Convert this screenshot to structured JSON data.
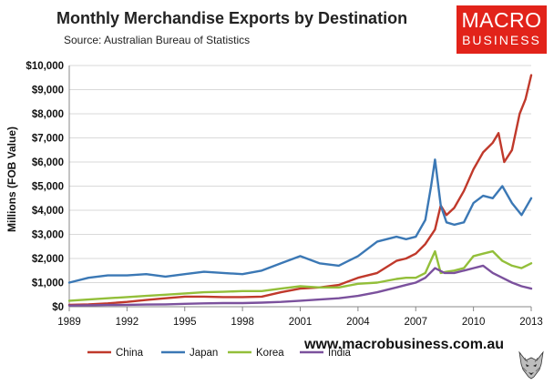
{
  "title": "Monthly Merchandise Exports by Destination",
  "subtitle": "Source:  Australian Bureau of Statistics",
  "logo": {
    "line1": "MACRO",
    "line2": "BUSINESS",
    "color": "#e2231a"
  },
  "website": "www.macrobusiness.com.au",
  "wolf_icon": "wolf-head-logo",
  "chart_data": {
    "type": "line",
    "ylabel": "Millions (FOB Value)",
    "ylim": [
      0,
      10000
    ],
    "xlim": [
      1989,
      2013
    ],
    "yticks": [
      0,
      1000,
      2000,
      3000,
      4000,
      5000,
      6000,
      7000,
      8000,
      9000,
      10000
    ],
    "ytick_labels": [
      "$0",
      "$1,000",
      "$2,000",
      "$3,000",
      "$4,000",
      "$5,000",
      "$6,000",
      "$7,000",
      "$8,000",
      "$9,000",
      "$10,000"
    ],
    "xticks": [
      1989,
      1992,
      1995,
      1998,
      2001,
      2004,
      2007,
      2010,
      2013
    ],
    "xtick_labels": [
      "1989",
      "1992",
      "1995",
      "1998",
      "2001",
      "2004",
      "2007",
      "2010",
      "2013"
    ],
    "grid": true,
    "legend_position": "bottom",
    "series": [
      {
        "name": "China",
        "color": "#c0392b",
        "x": [
          1989.0,
          1990.0,
          1991.0,
          1992.0,
          1993.0,
          1994.0,
          1995.0,
          1996.0,
          1997.0,
          1998.0,
          1999.0,
          2000.0,
          2001.0,
          2002.0,
          2003.0,
          2004.0,
          2005.0,
          2006.0,
          2006.5,
          2007.0,
          2007.5,
          2008.0,
          2008.3,
          2008.6,
          2009.0,
          2009.5,
          2010.0,
          2010.5,
          2011.0,
          2011.3,
          2011.6,
          2012.0,
          2012.4,
          2012.7,
          2013.0
        ],
        "y": [
          80,
          100,
          140,
          200,
          280,
          350,
          420,
          420,
          400,
          400,
          420,
          600,
          750,
          800,
          900,
          1200,
          1400,
          1900,
          2000,
          2200,
          2600,
          3200,
          4200,
          3800,
          4100,
          4800,
          5700,
          6400,
          6800,
          7200,
          6000,
          6500,
          8000,
          8600,
          9600
        ]
      },
      {
        "name": "Japan",
        "color": "#3b78b5",
        "x": [
          1989.0,
          1990.0,
          1991.0,
          1992.0,
          1993.0,
          1994.0,
          1995.0,
          1996.0,
          1997.0,
          1998.0,
          1999.0,
          2000.0,
          2001.0,
          2002.0,
          2003.0,
          2004.0,
          2005.0,
          2006.0,
          2006.5,
          2007.0,
          2007.5,
          2007.8,
          2008.0,
          2008.3,
          2008.6,
          2009.0,
          2009.5,
          2010.0,
          2010.5,
          2011.0,
          2011.5,
          2012.0,
          2012.5,
          2013.0
        ],
        "y": [
          1000,
          1200,
          1300,
          1300,
          1350,
          1250,
          1350,
          1450,
          1400,
          1350,
          1500,
          1800,
          2100,
          1800,
          1700,
          2100,
          2700,
          2900,
          2800,
          2900,
          3600,
          5000,
          6100,
          4200,
          3500,
          3400,
          3500,
          4300,
          4600,
          4500,
          5000,
          4300,
          3800,
          4500
        ]
      },
      {
        "name": "Korea",
        "color": "#93bf3a",
        "x": [
          1989.0,
          1990.0,
          1991.0,
          1992.0,
          1993.0,
          1994.0,
          1995.0,
          1996.0,
          1997.0,
          1998.0,
          1999.0,
          2000.0,
          2001.0,
          2002.0,
          2003.0,
          2004.0,
          2005.0,
          2006.0,
          2006.5,
          2007.0,
          2007.5,
          2008.0,
          2008.3,
          2008.6,
          2009.0,
          2009.5,
          2010.0,
          2010.5,
          2011.0,
          2011.5,
          2012.0,
          2012.5,
          2013.0
        ],
        "y": [
          250,
          300,
          350,
          400,
          450,
          500,
          550,
          600,
          620,
          650,
          650,
          750,
          850,
          800,
          800,
          950,
          1000,
          1150,
          1200,
          1200,
          1400,
          2300,
          1400,
          1450,
          1500,
          1600,
          2100,
          2200,
          2300,
          1900,
          1700,
          1600,
          1800
        ]
      },
      {
        "name": "India",
        "color": "#7b519d",
        "x": [
          1989.0,
          1990.0,
          1991.0,
          1992.0,
          1993.0,
          1994.0,
          1995.0,
          1996.0,
          1997.0,
          1998.0,
          1999.0,
          2000.0,
          2001.0,
          2002.0,
          2003.0,
          2004.0,
          2005.0,
          2006.0,
          2006.5,
          2007.0,
          2007.5,
          2008.0,
          2008.5,
          2009.0,
          2009.5,
          2010.0,
          2010.5,
          2011.0,
          2011.5,
          2012.0,
          2012.5,
          2013.0
        ],
        "y": [
          50,
          60,
          70,
          80,
          90,
          100,
          120,
          140,
          150,
          150,
          170,
          200,
          250,
          300,
          350,
          450,
          600,
          800,
          900,
          1000,
          1200,
          1600,
          1400,
          1400,
          1500,
          1600,
          1700,
          1400,
          1200,
          1000,
          850,
          750
        ]
      }
    ]
  }
}
